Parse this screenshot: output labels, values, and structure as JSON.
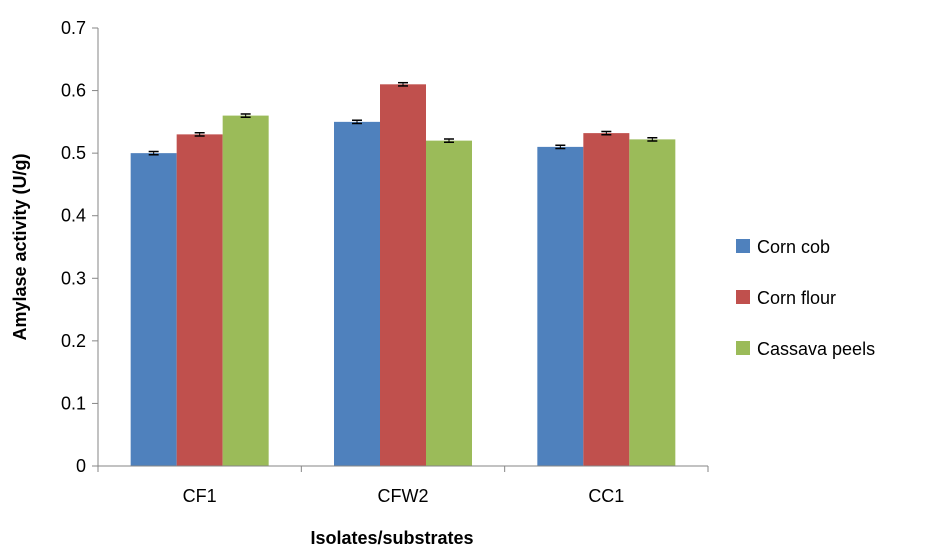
{
  "chart_data": {
    "type": "bar",
    "categories": [
      "CF1",
      "CFW2",
      "CC1"
    ],
    "series": [
      {
        "name": "Corn cob",
        "values": [
          0.5,
          0.55,
          0.51
        ],
        "errors": [
          0.001,
          0.001,
          0.001
        ],
        "color": "#4F81BD"
      },
      {
        "name": "Corn flour",
        "values": [
          0.53,
          0.61,
          0.532
        ],
        "errors": [
          0.001,
          0.001,
          0.001
        ],
        "color": "#C0504D"
      },
      {
        "name": "Cassava peels",
        "values": [
          0.56,
          0.52,
          0.522
        ],
        "errors": [
          0.001,
          0.001,
          0.001
        ],
        "color": "#9BBB59"
      }
    ],
    "xlabel": "Isolates/substrates",
    "ylabel": "Amylase activity (U/g)",
    "ylim": [
      0,
      0.7
    ],
    "yticks": [
      "0",
      "0.1",
      "0.2",
      "0.3",
      "0.4",
      "0.5",
      "0.6",
      "0.7"
    ],
    "grid": false,
    "legend_position": "right",
    "error_bars": true
  }
}
